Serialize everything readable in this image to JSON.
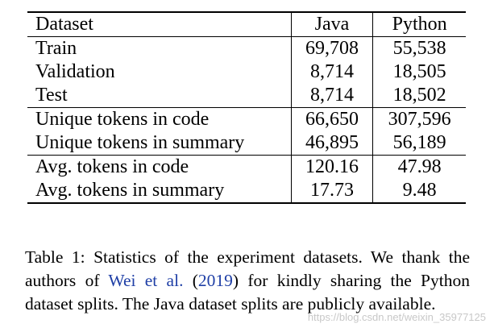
{
  "table": {
    "headers": [
      "Dataset",
      "Java",
      "Python"
    ],
    "groups": [
      [
        [
          "Train",
          "69,708",
          "55,538"
        ],
        [
          "Validation",
          "8,714",
          "18,505"
        ],
        [
          "Test",
          "8,714",
          "18,502"
        ]
      ],
      [
        [
          "Unique tokens in code",
          "66,650",
          "307,596"
        ],
        [
          "Unique tokens in summary",
          "46,895",
          "56,189"
        ]
      ],
      [
        [
          "Avg. tokens in code",
          "120.16",
          "47.98"
        ],
        [
          "Avg. tokens in summary",
          "17.73",
          "9.48"
        ]
      ]
    ]
  },
  "caption": {
    "before": "Table 1: Statistics of the experiment datasets. We thank the authors of ",
    "cite_text": "Wei et al.",
    "paren_open": " (",
    "cite_year": "2019",
    "after": ") for kindly sharing the Python dataset splits. The Java dataset splits are publicly available."
  },
  "watermark": "https://blog.csdn.net/weixin_35977125"
}
